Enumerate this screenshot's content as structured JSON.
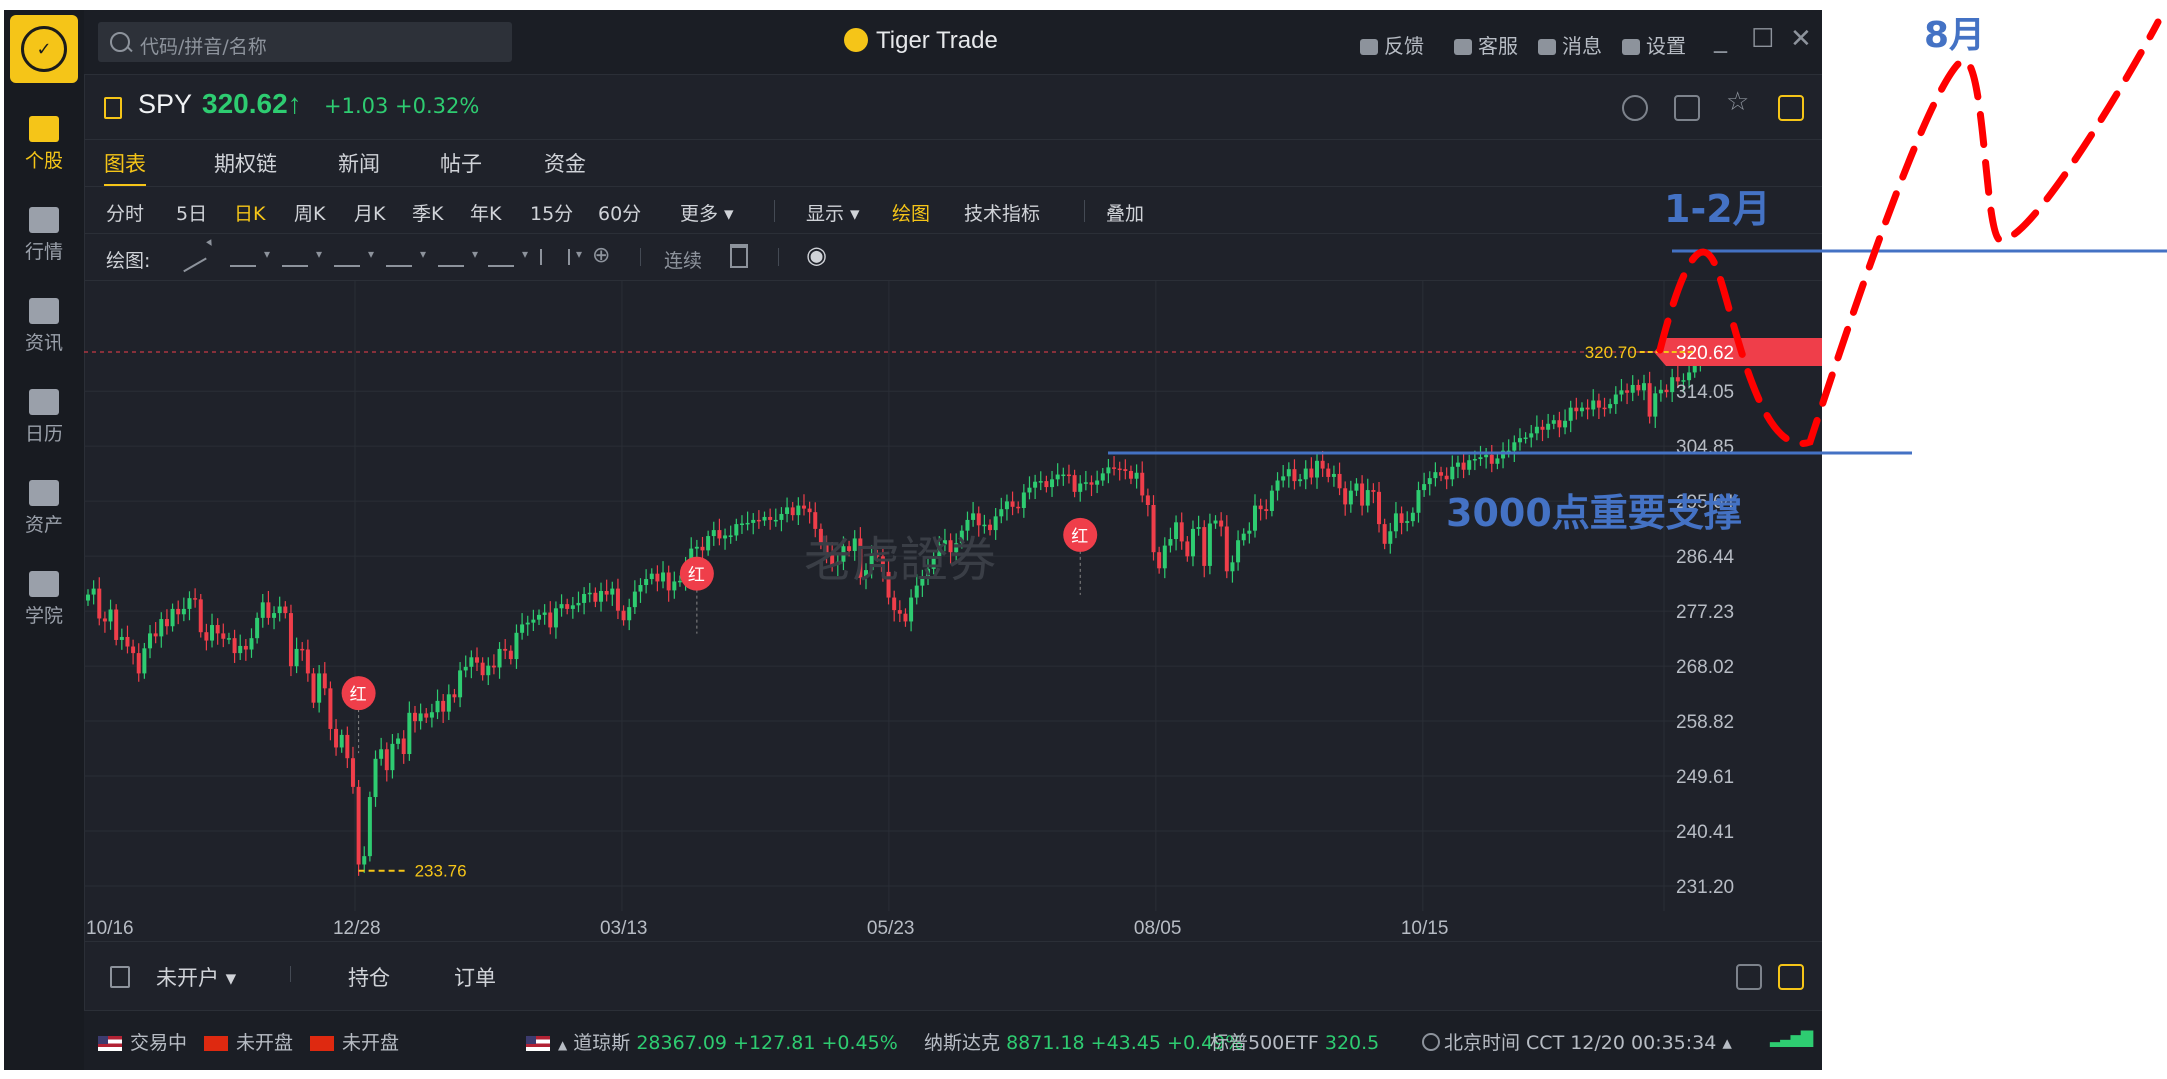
{
  "app": {
    "title": "Tiger Trade",
    "search_placeholder": "代码/拼音/名称",
    "top_actions": [
      "反馈",
      "客服",
      "消息",
      "设置"
    ],
    "window_controls": [
      "_",
      "☐",
      "✕"
    ]
  },
  "leftnav": [
    {
      "label": "个股",
      "icon": "stock-icon",
      "active": true
    },
    {
      "label": "行情",
      "icon": "market-icon",
      "active": false
    },
    {
      "label": "资讯",
      "icon": "news-icon",
      "active": false
    },
    {
      "label": "日历",
      "icon": "calendar-icon",
      "active": false
    },
    {
      "label": "资产",
      "icon": "wallet-icon",
      "active": false
    },
    {
      "label": "学院",
      "icon": "play-icon",
      "active": false
    }
  ],
  "symbol": {
    "name": "SPY",
    "price": "320.62",
    "arrow": "↑",
    "change": "+1.03  +0.32%"
  },
  "tabs": [
    "图表",
    "期权链",
    "新闻",
    "帖子",
    "资金"
  ],
  "periods": [
    "分时",
    "5日",
    "日K",
    "周K",
    "月K",
    "季K",
    "年K",
    "15分",
    "60分",
    "更多 ▾"
  ],
  "chart_options": [
    "显示 ▾",
    "绘图",
    "技术指标",
    "叠加"
  ],
  "draw": {
    "label": "绘图:",
    "continuous": "连续"
  },
  "chart_data": {
    "type": "candlestick",
    "x_ticks": [
      "10/16",
      "12/28",
      "03/13",
      "05/23",
      "08/05",
      "10/15"
    ],
    "y_ticks": [
      "320.62",
      "314.05",
      "304.85",
      "295.64",
      "286.44",
      "277.23",
      "268.02",
      "258.82",
      "249.61",
      "240.41",
      "231.20"
    ],
    "ylim": [
      231.2,
      323.3
    ],
    "current_price": 320.62,
    "high_label": "320.70",
    "low_label": "233.76",
    "markers": [
      {
        "label": "红",
        "price": 263.5
      },
      {
        "label": "红",
        "price": 283.5
      },
      {
        "label": "红",
        "price": 290.0
      }
    ],
    "closes": [
      280.0,
      281.0,
      276.0,
      275.5,
      277.5,
      272.4,
      272.9,
      271.3,
      270.2,
      266.8,
      271.0,
      273.5,
      273.0,
      275.9,
      274.7,
      277.6,
      276.7,
      277.6,
      279.4,
      279.2,
      273.7,
      272.3,
      274.9,
      273.5,
      272.6,
      272.7,
      270.2,
      271.4,
      270.8,
      272.7,
      276.1,
      278.7,
      276.1,
      276.9,
      278.0,
      276.9,
      268.0,
      270.9,
      270.8,
      266.8,
      261.9,
      266.8,
      264.3,
      257.5,
      254.4,
      256.5,
      252.6,
      247.8,
      234.8,
      236.2,
      246.1,
      252.5,
      254.1,
      250.6,
      255.0,
      255.9,
      253.3,
      260.2,
      258.8,
      260.1,
      259.4,
      260.3,
      262.2,
      260.4,
      263.3,
      262.8,
      267.3,
      267.9,
      269.5,
      268.6,
      266.5,
      268.1,
      267.8,
      270.9,
      270.6,
      269.2,
      273.6,
      275.0,
      275.3,
      275.8,
      276.6,
      277.0,
      274.5,
      277.7,
      278.4,
      277.6,
      278.2,
      278.6,
      280.1,
      280.3,
      278.8,
      280.6,
      280.0,
      281.0,
      277.3,
      275.7,
      277.9,
      280.5,
      281.6,
      282.6,
      283.5,
      282.2,
      283.7,
      280.7,
      282.2,
      282.3,
      284.9,
      287.7,
      288.0,
      287.4,
      289.8,
      290.8,
      289.4,
      289.9,
      289.9,
      291.8,
      291.9,
      292.0,
      292.5,
      292.4,
      293.0,
      292.5,
      292.5,
      293.5,
      294.6,
      293.3,
      294.9,
      294.4,
      293.8,
      291.0,
      288.5,
      286.9,
      285.0,
      285.5,
      288.1,
      287.3,
      289.4,
      282.8,
      284.1,
      286.6,
      286.4,
      283.8,
      279.5,
      277.4,
      276.8,
      275.5,
      279.5,
      281.5,
      283.0,
      284.3,
      286.3,
      288.4,
      289.1,
      287.1,
      288.6,
      290.7,
      292.5,
      293.6,
      291.6,
      291.7,
      290.8,
      293.1,
      294.3,
      295.6,
      294.7,
      294.5,
      297.1,
      297.9,
      298.9,
      299.0,
      298.0,
      299.3,
      300.1,
      300.1,
      300.0,
      297.2,
      298.6,
      298.8,
      298.4,
      299.1,
      300.3,
      301.3,
      301.1,
      301.0,
      300.7,
      299.4,
      300.4,
      296.6,
      295.0,
      287.1,
      284.4,
      288.2,
      289.3,
      292.1,
      288.9,
      286.4,
      291.0,
      291.3,
      284.8,
      291.9,
      292.4,
      291.4,
      283.9,
      285.4,
      289.1,
      290.2,
      290.7,
      294.9,
      294.3,
      294.0,
      297.4,
      299.1,
      299.8,
      301.0,
      299.0,
      299.3,
      301.1,
      299.6,
      302.4,
      301.1,
      299.7,
      300.2,
      297.8,
      295.1,
      297.4,
      298.6,
      294.9,
      297.5,
      297.2,
      291.8,
      288.5,
      290.6,
      293.6,
      292.0,
      292.3,
      293.7,
      297.5,
      298.5,
      299.5,
      300.5,
      299.9,
      299.3,
      301.4,
      302.1,
      300.9,
      302.5,
      302.7,
      303.0,
      303.4,
      301.9,
      302.8,
      304.1,
      304.1,
      305.5,
      306.2,
      306.3,
      307.0,
      308.1,
      307.6,
      308.6,
      309.2,
      308.0,
      309.1,
      311.3,
      310.7,
      311.3,
      311.0,
      312.5,
      311.3,
      311.2,
      311.9,
      313.5,
      314.2,
      313.8,
      315.1,
      314.2,
      315.4,
      309.8,
      313.7,
      314.3,
      313.9,
      316.4,
      315.7,
      315.9,
      317.2,
      319.0,
      319.6,
      320.6
    ]
  },
  "bottom": {
    "account": "未开户 ▾",
    "positions": "持仓",
    "orders": "订单"
  },
  "status": {
    "markets": [
      {
        "flag": "us",
        "label": "交易中"
      },
      {
        "flag": "hk",
        "label": "未开盘"
      },
      {
        "flag": "cn",
        "label": "未开盘"
      }
    ],
    "dji_name": "道琼斯",
    "dji_value": "28367.09 +127.81 +0.45%",
    "ixic_name": "纳斯达克",
    "ixic_value": "8871.18 +43.45 +0.49%",
    "spy_name": "标普500ETF",
    "spy_value": "320.5",
    "time": "北京时间 CCT  12/20 00:35:34 ▴"
  },
  "annotations": {
    "label_aug": "8月",
    "label_jan_feb": "1-2月",
    "label_support": "3000点重要支撑",
    "line_color": "#4472c4",
    "dash_color": "#ff0000"
  }
}
